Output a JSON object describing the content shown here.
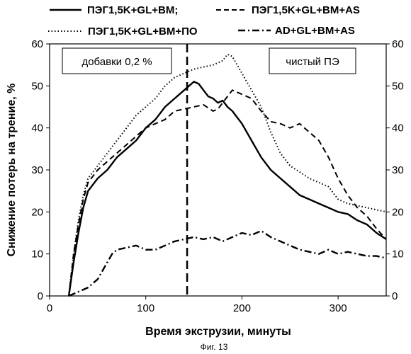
{
  "chart_data": {
    "type": "line",
    "xlabel": "Время экструзии, минуты",
    "ylabel": "Снижение потерь на трение, %",
    "xlim": [
      0,
      350
    ],
    "ylim": [
      0,
      60
    ],
    "x_ticks": [
      "0",
      "100",
      "200",
      "300"
    ],
    "y_ticks": [
      "0",
      "10",
      "20",
      "30",
      "40",
      "50",
      "60"
    ],
    "y2_ticks": [
      "0",
      "10",
      "20",
      "30",
      "40",
      "50",
      "60"
    ],
    "grid": false,
    "legend_position": "top",
    "annotations": {
      "left_box": "добавки 0,2 %",
      "right_box": "чистый ПЭ"
    },
    "vertical_line_x": 143,
    "caption": "Фиг. 13",
    "series": [
      {
        "name": "ПЭГ1,5K+GL+BM;",
        "style": "solid",
        "x": [
          20,
          25,
          30,
          35,
          40,
          50,
          60,
          70,
          80,
          90,
          100,
          110,
          120,
          130,
          140,
          145,
          150,
          155,
          160,
          165,
          170,
          175,
          180,
          185,
          190,
          200,
          210,
          220,
          230,
          240,
          250,
          260,
          270,
          280,
          290,
          300,
          310,
          320,
          330,
          340,
          350
        ],
        "y": [
          0,
          8,
          15,
          21,
          25,
          28,
          30,
          33,
          35,
          37,
          40,
          42,
          45,
          47,
          49,
          50,
          51,
          50.5,
          49,
          47.5,
          47,
          46,
          46.5,
          45,
          44,
          41,
          37,
          33,
          30,
          28,
          26,
          24,
          23,
          22,
          21,
          20,
          19.5,
          18,
          17,
          15,
          13.5
        ]
      },
      {
        "name": "ПЭГ1,5K+GL+BM+AS",
        "style": "dashed",
        "x": [
          20,
          25,
          30,
          35,
          40,
          50,
          60,
          70,
          80,
          90,
          100,
          110,
          120,
          130,
          140,
          150,
          160,
          170,
          175,
          180,
          190,
          200,
          210,
          220,
          230,
          240,
          250,
          260,
          270,
          280,
          290,
          300,
          310,
          320,
          330,
          340,
          350
        ],
        "y": [
          0,
          10,
          17,
          23,
          27,
          30,
          32,
          34,
          36,
          38,
          40,
          41,
          42,
          44,
          44.5,
          45,
          45.5,
          44,
          44.5,
          46,
          49,
          48,
          47,
          44,
          41.5,
          41,
          40,
          41,
          39,
          37,
          33,
          28,
          24,
          21,
          19,
          16,
          13.5
        ]
      },
      {
        "name": "ПЭГ1,5K+GL+BM+ПО",
        "style": "dotted",
        "x": [
          20,
          25,
          30,
          35,
          40,
          50,
          60,
          70,
          80,
          90,
          100,
          110,
          120,
          130,
          140,
          150,
          160,
          170,
          180,
          185,
          190,
          200,
          210,
          220,
          230,
          240,
          250,
          260,
          270,
          280,
          290,
          300,
          310,
          320,
          330,
          340,
          350
        ],
        "y": [
          0,
          10,
          18,
          24,
          28,
          31,
          34,
          37,
          40,
          43,
          45,
          47,
          50,
          52,
          53,
          54,
          54.5,
          55,
          56,
          57.5,
          57,
          53,
          49,
          45,
          39,
          34,
          31,
          29.5,
          28,
          27,
          26,
          23,
          22,
          21.5,
          21,
          20.5,
          20
        ]
      },
      {
        "name": "AD+GL+BM+AS",
        "style": "dash-dot",
        "x": [
          20,
          30,
          40,
          50,
          60,
          65,
          70,
          80,
          90,
          100,
          110,
          120,
          130,
          140,
          150,
          160,
          170,
          180,
          190,
          200,
          210,
          220,
          230,
          240,
          250,
          260,
          270,
          280,
          290,
          300,
          310,
          320,
          330,
          340,
          350
        ],
        "y": [
          0,
          1,
          2,
          4,
          8,
          10,
          11,
          11.5,
          12,
          11,
          11,
          12,
          13,
          13.5,
          14,
          13.5,
          14,
          13,
          14,
          15,
          14.5,
          15.5,
          14,
          13,
          12,
          11,
          10.5,
          10,
          11,
          10,
          10.5,
          10,
          9.5,
          9.5,
          9
        ]
      }
    ]
  }
}
